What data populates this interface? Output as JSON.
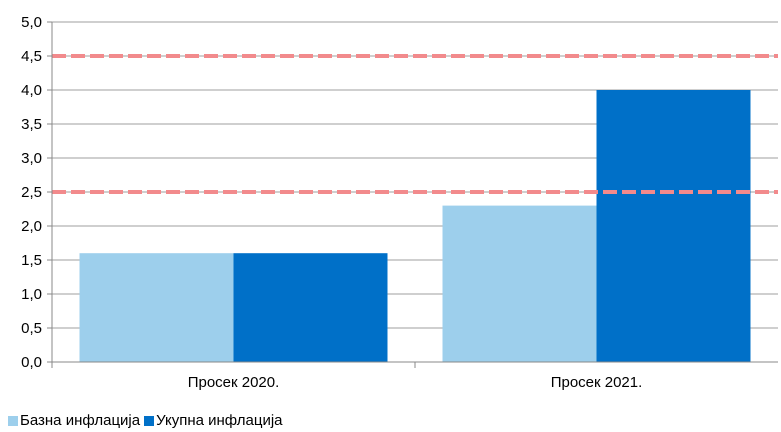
{
  "chart_data": {
    "type": "bar",
    "categories": [
      "Просек 2020.",
      "Просек 2021."
    ],
    "series": [
      {
        "name": "Базна инфлација",
        "values": [
          1.6,
          2.3
        ],
        "color": "#9DCFEC"
      },
      {
        "name": "Укупна инфлација",
        "values": [
          1.6,
          4.0
        ],
        "color": "#0070C8"
      }
    ],
    "y_ticks": [
      "0,0",
      "0,5",
      "1,0",
      "1,5",
      "2,0",
      "2,5",
      "3,0",
      "3,5",
      "4,0",
      "4,5",
      "5,0"
    ],
    "ylim": [
      0,
      5
    ],
    "reference_lines": [
      {
        "value": 2.5,
        "color": "#F28A8C",
        "style": "dashed"
      },
      {
        "value": 4.5,
        "color": "#F28A8C",
        "style": "dashed"
      }
    ],
    "grid": true,
    "gridline_color": "#BFBFBF",
    "legend_position": "bottom-left"
  }
}
